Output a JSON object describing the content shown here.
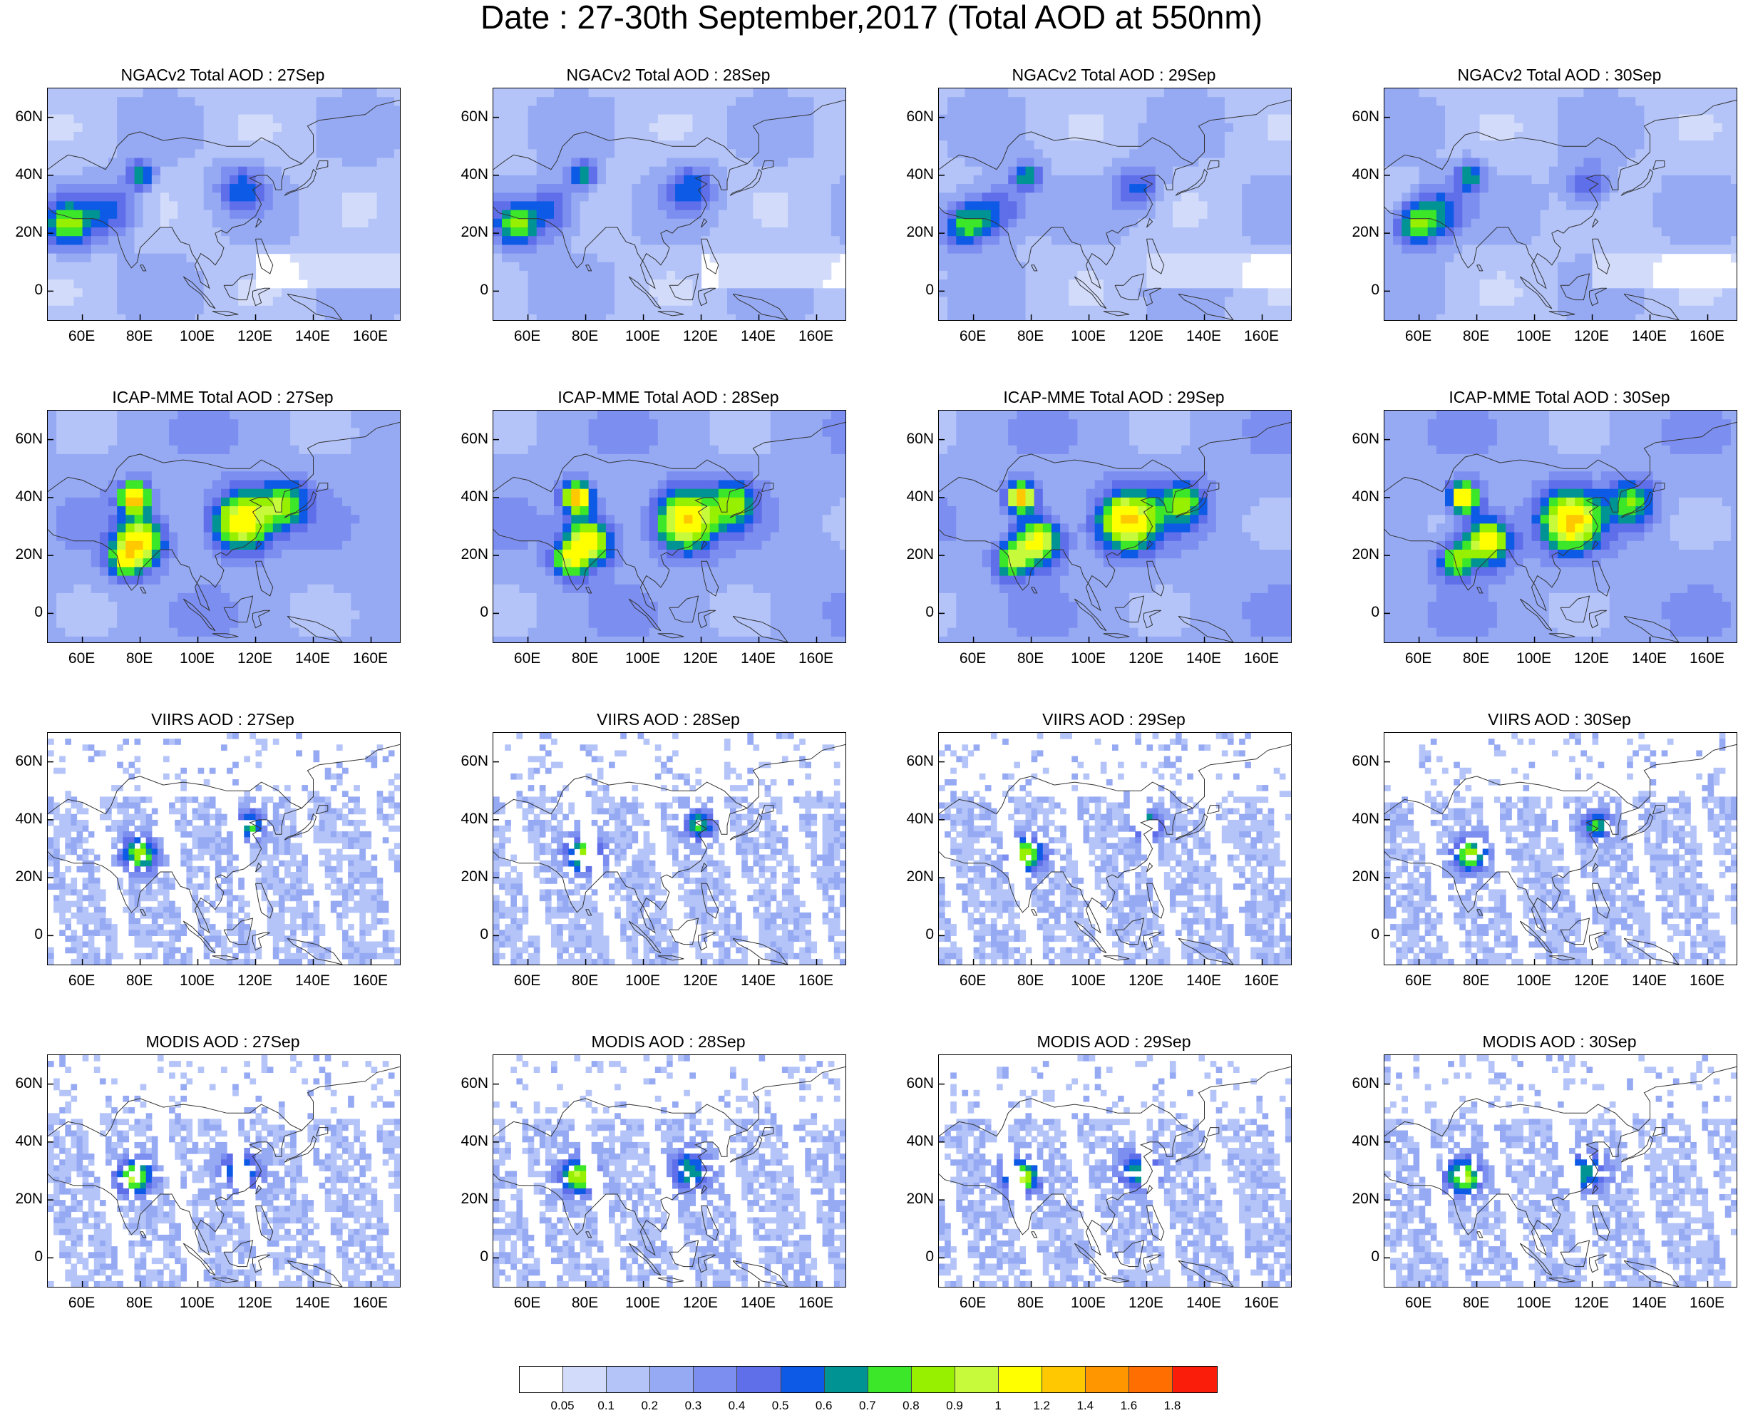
{
  "title": "Date : 27-30th September,2017 (Total AOD at 550nm)",
  "rows": [
    {
      "source": "ngac",
      "panels": [
        "NGACv2 Total AOD : 27Sep",
        "NGACv2 Total AOD : 28Sep",
        "NGACv2 Total AOD : 29Sep",
        "NGACv2 Total AOD : 30Sep"
      ]
    },
    {
      "source": "icap",
      "panels": [
        "ICAP-MME Total AOD : 27Sep",
        "ICAP-MME Total AOD : 28Sep",
        "ICAP-MME Total AOD : 29Sep",
        "ICAP-MME Total AOD : 30Sep"
      ]
    },
    {
      "source": "viirs",
      "panels": [
        "VIIRS AOD : 27Sep",
        "VIIRS AOD : 28Sep",
        "VIIRS AOD : 29Sep",
        "VIIRS AOD : 30Sep"
      ]
    },
    {
      "source": "modis",
      "panels": [
        "MODIS AOD : 27Sep",
        "MODIS AOD : 28Sep",
        "MODIS AOD : 29Sep",
        "MODIS AOD : 30Sep"
      ]
    }
  ],
  "axes": {
    "lon_range": [
      48,
      170
    ],
    "lat_range": [
      -10,
      70
    ],
    "xticks": [
      60,
      80,
      100,
      120,
      140,
      160
    ],
    "xtick_labels": [
      "60E",
      "80E",
      "100E",
      "120E",
      "140E",
      "160E"
    ],
    "yticks": [
      60,
      40,
      20,
      0
    ],
    "ytick_labels": [
      "60N",
      "40N",
      "20N",
      "0"
    ]
  },
  "colorbar": {
    "colors": [
      "#ffffff",
      "#d2dcfa",
      "#b4c4f8",
      "#96aaf4",
      "#7c8ef0",
      "#5f6ee9",
      "#0c5ae6",
      "#009393",
      "#3ce628",
      "#96f000",
      "#c8fa3c",
      "#ffff00",
      "#ffc800",
      "#ff9600",
      "#ff6e00",
      "#fa1e0a"
    ],
    "labels": [
      "0.05",
      "0.1",
      "0.2",
      "0.3",
      "0.4",
      "0.5",
      "0.6",
      "0.7",
      "0.8",
      "0.9",
      "1",
      "1.2",
      "1.4",
      "1.6",
      "1.8"
    ]
  },
  "icons": {
    "coastline": "coastline-outline-icon"
  }
}
